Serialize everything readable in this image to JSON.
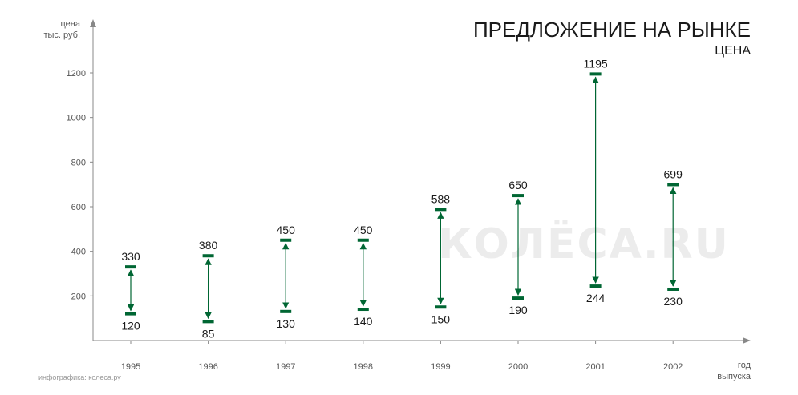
{
  "chart_data": {
    "type": "range",
    "title": "ПРЕДЛОЖЕНИЕ НА РЫНКЕ",
    "subtitle": "ЦЕНА",
    "ylabel": [
      "цена",
      "тыс. руб."
    ],
    "xlabel": [
      "год",
      "выпуска"
    ],
    "yticks": [
      200,
      400,
      600,
      800,
      1000,
      1200
    ],
    "ylim": [
      0,
      1200
    ],
    "categories": [
      "1995",
      "1996",
      "1997",
      "1998",
      "1999",
      "2000",
      "2001",
      "2002"
    ],
    "min_values": [
      120,
      85,
      130,
      140,
      150,
      190,
      244,
      230
    ],
    "max_values": [
      330,
      380,
      450,
      450,
      588,
      650,
      1195,
      699
    ],
    "color": "#006633",
    "grid": false
  },
  "credit": "инфографика: колеса.ру",
  "watermark": "КОЛЁСА.RU"
}
